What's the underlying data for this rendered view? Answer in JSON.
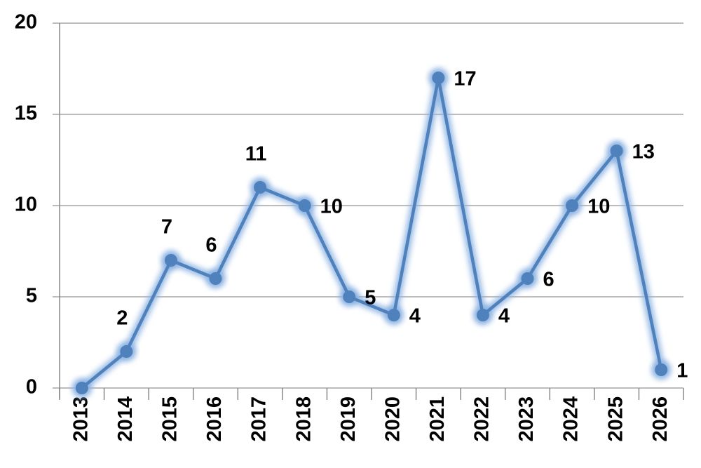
{
  "chart_data": {
    "type": "line",
    "categories": [
      "2013",
      "2014",
      "2015",
      "2016",
      "2017",
      "2018",
      "2019",
      "2020",
      "2021",
      "2022",
      "2023",
      "2024",
      "2025",
      "2026"
    ],
    "values": [
      0,
      2,
      7,
      6,
      11,
      10,
      5,
      4,
      17,
      4,
      6,
      10,
      13,
      1
    ],
    "value_labels": [
      null,
      "2",
      "7",
      "6",
      "11",
      "10",
      "5",
      "4",
      "17",
      "4",
      "6",
      "10",
      "13",
      "1"
    ],
    "color": "#4f81bd",
    "ylim": [
      0,
      20
    ],
    "yticks": [
      0,
      5,
      10,
      15,
      20
    ],
    "grid": true
  }
}
